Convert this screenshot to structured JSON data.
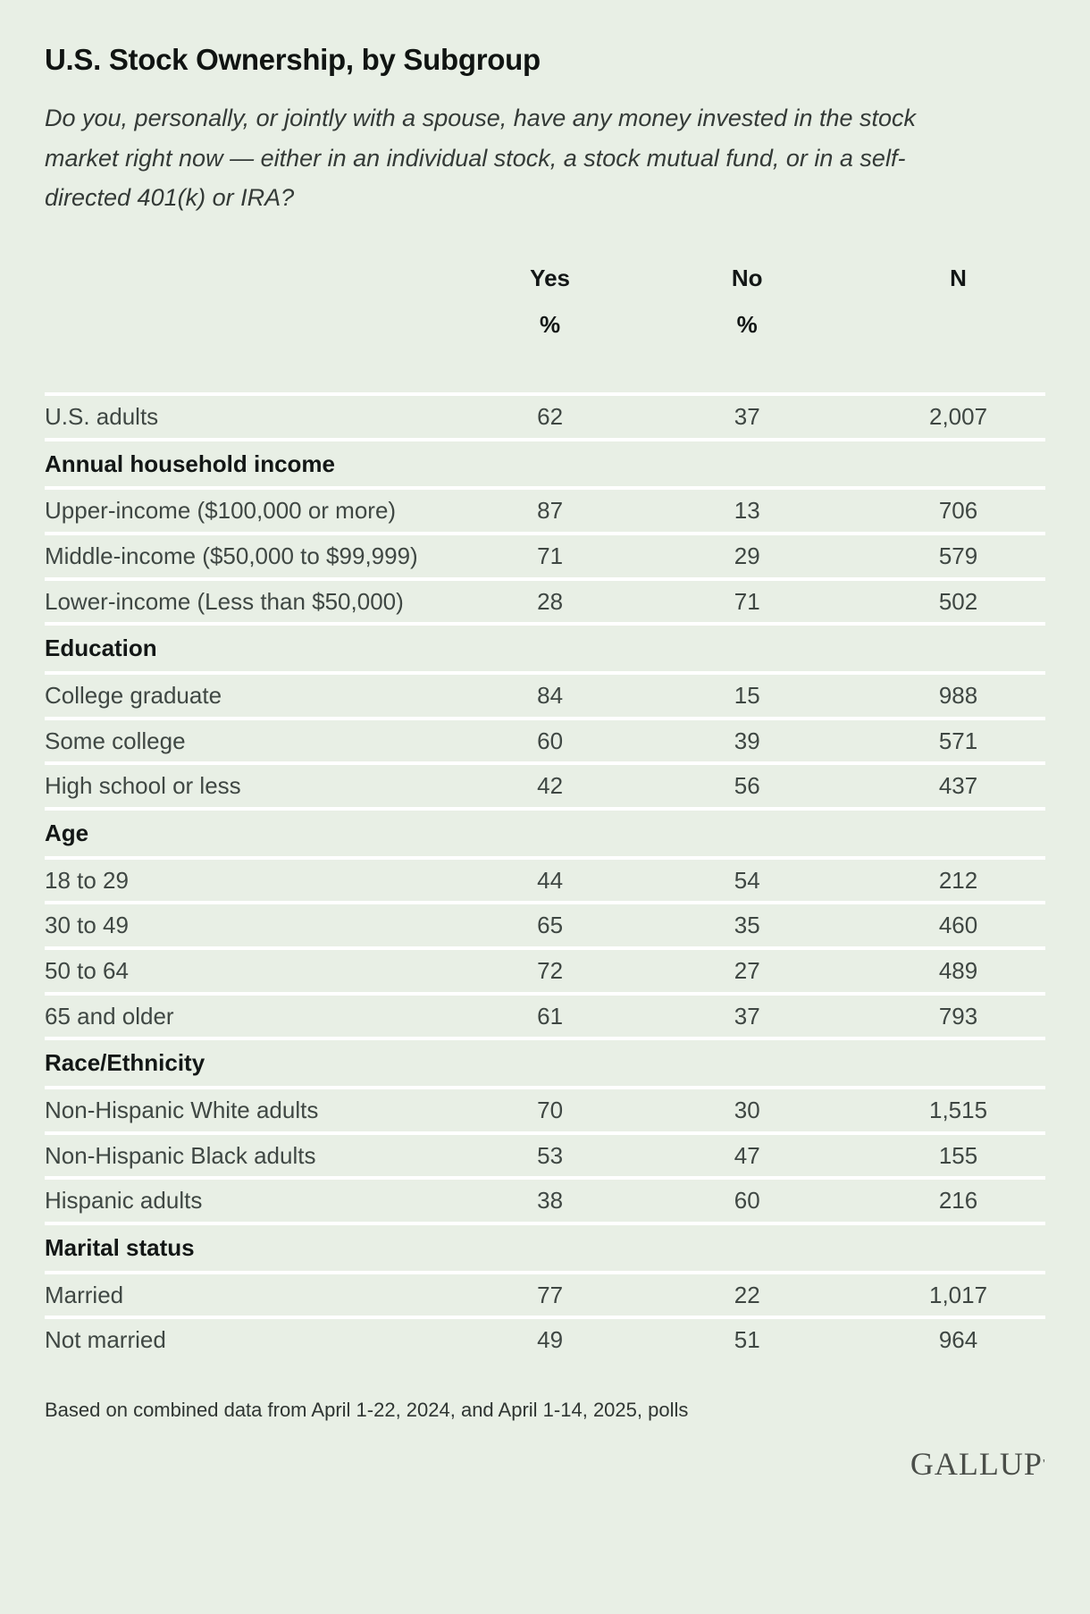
{
  "page": {
    "title": "U.S. Stock Ownership, by Subgroup",
    "subtitle": "Do you, personally, or jointly with a spouse, have any money invested in the stock market right now — either in an individual stock, a stock mutual fund, or in a self-directed 401(k) or IRA?",
    "footnote": "Based on combined data from April 1-22, 2024, and April 1-14, 2025, polls",
    "brand": "GALLUP",
    "brand_mark": "ʼ"
  },
  "colors": {
    "background": "#e8efe5",
    "separator": "#ffffff",
    "body_text": "#3f4743",
    "heading_text": "#131716"
  },
  "chart_data": {
    "type": "table",
    "title": "U.S. Stock Ownership, by Subgroup",
    "columns": [
      "Yes",
      "No",
      "N"
    ],
    "units": [
      "%",
      "%",
      ""
    ],
    "rows": [
      {
        "kind": "data",
        "label": "U.S. adults",
        "yes": "62",
        "no": "37",
        "n": "2,007"
      },
      {
        "kind": "section",
        "label": "Annual household income"
      },
      {
        "kind": "data",
        "label": "Upper-income ($100,000 or more)",
        "yes": "87",
        "no": "13",
        "n": "706"
      },
      {
        "kind": "data",
        "label": "Middle-income ($50,000 to $99,999)",
        "yes": "71",
        "no": "29",
        "n": "579"
      },
      {
        "kind": "data",
        "label": "Lower-income (Less than $50,000)",
        "yes": "28",
        "no": "71",
        "n": "502"
      },
      {
        "kind": "section",
        "label": "Education"
      },
      {
        "kind": "data",
        "label": "College graduate",
        "yes": "84",
        "no": "15",
        "n": "988"
      },
      {
        "kind": "data",
        "label": "Some college",
        "yes": "60",
        "no": "39",
        "n": "571"
      },
      {
        "kind": "data",
        "label": "High school or less",
        "yes": "42",
        "no": "56",
        "n": "437"
      },
      {
        "kind": "section",
        "label": "Age"
      },
      {
        "kind": "data",
        "label": "18 to 29",
        "yes": "44",
        "no": "54",
        "n": "212"
      },
      {
        "kind": "data",
        "label": "30 to 49",
        "yes": "65",
        "no": "35",
        "n": "460"
      },
      {
        "kind": "data",
        "label": "50 to 64",
        "yes": "72",
        "no": "27",
        "n": "489"
      },
      {
        "kind": "data",
        "label": "65 and older",
        "yes": "61",
        "no": "37",
        "n": "793"
      },
      {
        "kind": "section",
        "label": "Race/Ethnicity"
      },
      {
        "kind": "data",
        "label": "Non-Hispanic White adults",
        "yes": "70",
        "no": "30",
        "n": "1,515"
      },
      {
        "kind": "data",
        "label": "Non-Hispanic Black adults",
        "yes": "53",
        "no": "47",
        "n": "155"
      },
      {
        "kind": "data",
        "label": "Hispanic adults",
        "yes": "38",
        "no": "60",
        "n": "216"
      },
      {
        "kind": "section",
        "label": "Marital status"
      },
      {
        "kind": "data",
        "label": "Married",
        "yes": "77",
        "no": "22",
        "n": "1,017"
      },
      {
        "kind": "data",
        "label": "Not married",
        "yes": "49",
        "no": "51",
        "n": "964"
      }
    ]
  }
}
